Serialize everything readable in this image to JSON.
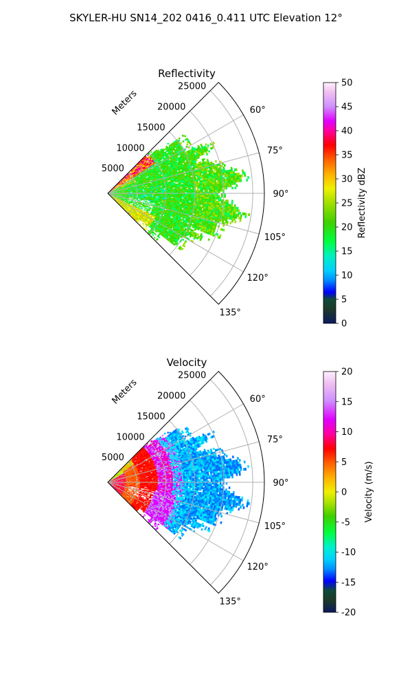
{
  "figure": {
    "title": "SKYLER-HU  SN14_202  0416_0.411 UTC Elevation 12°"
  },
  "chart_data": [
    {
      "type": "heatmap",
      "subtype": "polar-sector",
      "title": "Reflectivity",
      "range_label": "Meters",
      "range_ticks": [
        "5000",
        "10000",
        "15000",
        "20000",
        "25000"
      ],
      "range_max": 27000,
      "azimuth_ticks": [
        "60°",
        "75°",
        "90°",
        "105°",
        "120°",
        "135°"
      ],
      "azimuth_tick_values": [
        60,
        75,
        90,
        105,
        120,
        135
      ],
      "azimuth_range": [
        45,
        135
      ],
      "grid": true,
      "colorbar": {
        "label": "Reflectivity dBZ",
        "ticks": [
          "0",
          "5",
          "10",
          "15",
          "20",
          "25",
          "30",
          "35",
          "40",
          "45",
          "50"
        ],
        "range": [
          0,
          50
        ]
      },
      "field_summary": "Bulk 15–25 dBZ out to ~20 km; 35–45 dBZ cores within ~8 km along the upper-left edge"
    },
    {
      "type": "heatmap",
      "subtype": "polar-sector",
      "title": "Velocity",
      "range_label": "Meters",
      "range_ticks": [
        "5000",
        "10000",
        "15000",
        "20000",
        "25000"
      ],
      "range_max": 27000,
      "azimuth_ticks": [
        "60°",
        "75°",
        "90°",
        "105°",
        "120°",
        "135°"
      ],
      "azimuth_tick_values": [
        60,
        75,
        90,
        105,
        120,
        135
      ],
      "azimuth_range": [
        45,
        135
      ],
      "grid": true,
      "colorbar": {
        "label": "Velocity (m/s)",
        "ticks": [
          "-20",
          "-15",
          "-10",
          "-5",
          "0",
          "5",
          "10",
          "15",
          "20"
        ],
        "range": [
          -20,
          20
        ]
      },
      "field_summary": "0 to +12 m/s near radar, +14 to +18 m/s band near 10 km, -10 to -14 m/s beyond ~11 km"
    }
  ]
}
